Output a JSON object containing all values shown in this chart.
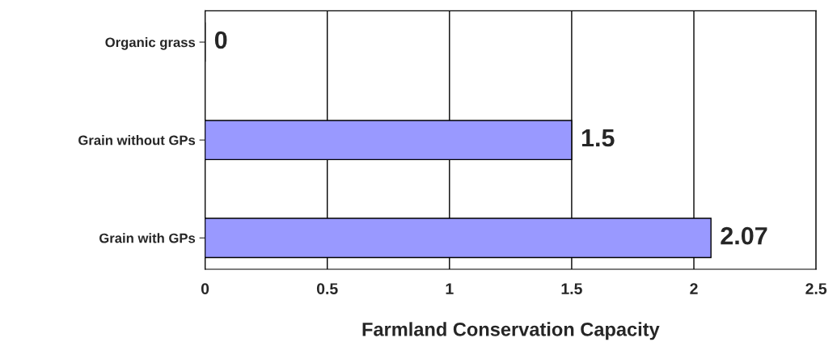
{
  "chart_data": {
    "type": "bar",
    "orientation": "horizontal",
    "xlabel": "Farmland Conservation Capacity",
    "categories": [
      "Organic grass",
      "Grain without GPs",
      "Grain with GPs"
    ],
    "values": [
      0,
      1.5,
      2.07
    ],
    "color": "#9999ff",
    "xlim": [
      0,
      2.5
    ],
    "xticks": [
      0,
      0.5,
      1,
      1.5,
      2,
      2.5
    ],
    "grid": "x",
    "data_labels": true
  }
}
